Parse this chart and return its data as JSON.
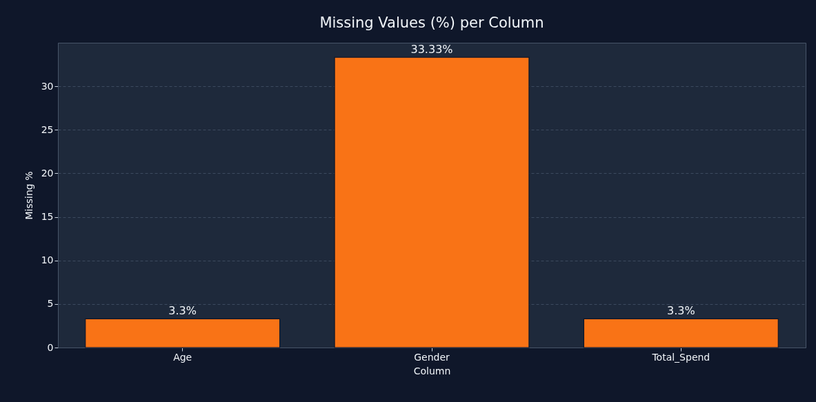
{
  "chart_data": {
    "type": "bar",
    "title": "Missing Values (%) per Column",
    "xlabel": "Column",
    "ylabel": "Missing %",
    "categories": [
      "Age",
      "Gender",
      "Total_Spend"
    ],
    "values": [
      3.3,
      33.33,
      3.3
    ],
    "value_labels": [
      "3.3%",
      "33.33%",
      "3.3%"
    ],
    "color": "#f97316",
    "ylim": [
      0,
      35
    ],
    "yticks": [
      0,
      5,
      10,
      15,
      20,
      25,
      30
    ],
    "grid": "y"
  }
}
